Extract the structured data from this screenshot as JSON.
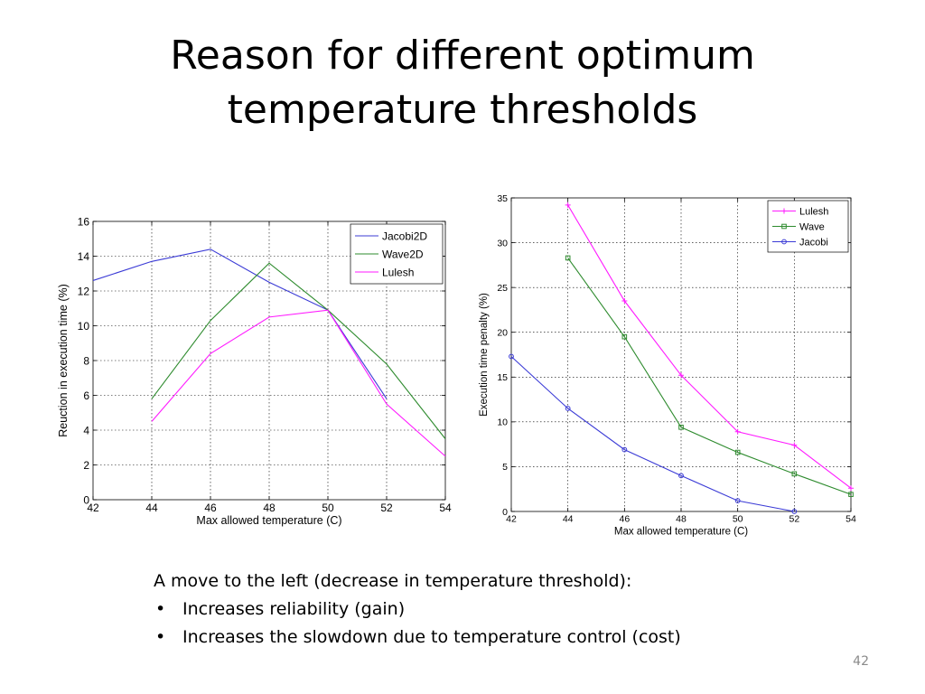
{
  "slide": {
    "title_line1": "Reason for different optimum",
    "title_line2": "temperature thresholds",
    "intro": "A move to the left (decrease in temperature threshold):",
    "bullets": [
      "Increases reliability (gain)",
      "Increases the slowdown due to temperature control (cost)"
    ],
    "page_number": "42"
  },
  "chart_data": [
    {
      "type": "line",
      "xlabel": "Max allowed temperature (C)",
      "ylabel": "Reuction in execution time (%)",
      "xlim": [
        42,
        54
      ],
      "ylim": [
        0,
        16
      ],
      "xticks": [
        42,
        44,
        46,
        48,
        50,
        52,
        54
      ],
      "yticks": [
        0,
        2,
        4,
        6,
        8,
        10,
        12,
        14,
        16
      ],
      "grid": true,
      "legend_position": "top-right",
      "series": [
        {
          "name": "Jacobi2D",
          "color": "#3b3bd6",
          "marker": "none",
          "x": [
            42,
            44,
            46,
            48,
            50,
            52
          ],
          "y": [
            12.6,
            13.7,
            14.4,
            12.5,
            10.9,
            5.8
          ]
        },
        {
          "name": "Wave2D",
          "color": "#2e8b2e",
          "marker": "none",
          "x": [
            44,
            46,
            48,
            50,
            52,
            54
          ],
          "y": [
            5.8,
            10.3,
            13.6,
            10.9,
            7.8,
            3.5
          ]
        },
        {
          "name": "Lulesh",
          "color": "#ff1aff",
          "marker": "none",
          "x": [
            44,
            46,
            48,
            50,
            52,
            54
          ],
          "y": [
            4.5,
            8.4,
            10.5,
            10.9,
            5.5,
            2.5
          ]
        }
      ]
    },
    {
      "type": "line",
      "xlabel": "Max allowed temperature (C)",
      "ylabel": "Execution time penalty (%)",
      "xlim": [
        42,
        54
      ],
      "ylim": [
        0,
        35
      ],
      "xticks": [
        42,
        44,
        46,
        48,
        50,
        52,
        54
      ],
      "yticks": [
        0,
        5,
        10,
        15,
        20,
        25,
        30,
        35
      ],
      "grid": true,
      "legend_position": "top-right",
      "series": [
        {
          "name": "Lulesh",
          "color": "#ff1aff",
          "marker": "plus",
          "x": [
            44,
            46,
            48,
            50,
            52,
            54
          ],
          "y": [
            34.2,
            23.5,
            15.2,
            8.9,
            7.4,
            2.6
          ]
        },
        {
          "name": "Wave",
          "color": "#2e8b2e",
          "marker": "square",
          "x": [
            44,
            46,
            48,
            50,
            52,
            54
          ],
          "y": [
            28.3,
            19.5,
            9.4,
            6.6,
            4.2,
            1.9
          ]
        },
        {
          "name": "Jacobi",
          "color": "#3b3bd6",
          "marker": "circle",
          "x": [
            42,
            44,
            46,
            48,
            50,
            52
          ],
          "y": [
            17.3,
            11.5,
            6.9,
            4.0,
            1.2,
            0.0
          ]
        }
      ]
    }
  ]
}
